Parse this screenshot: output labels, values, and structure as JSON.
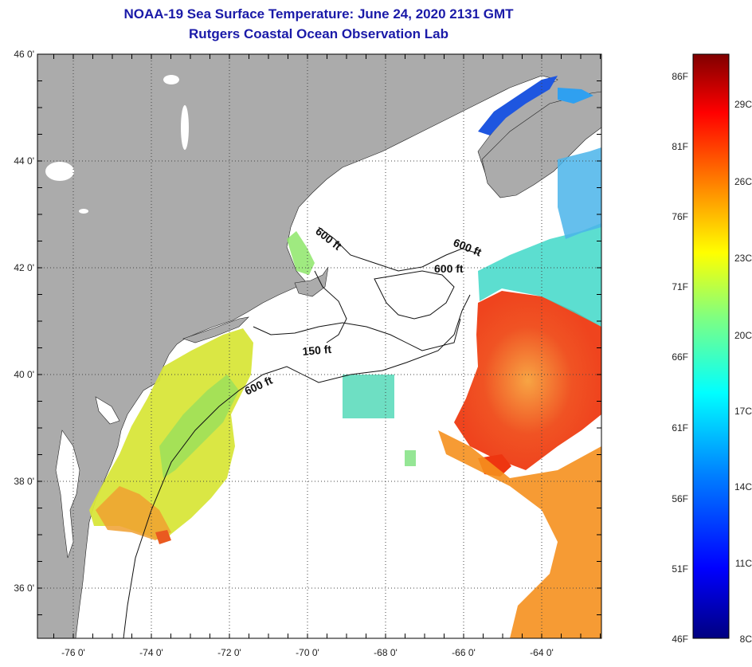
{
  "title": "NOAA-19 Sea Surface Temperature:  June 24, 2020 2131 GMT",
  "subtitle": "Rutgers Coastal Ocean Observation Lab",
  "lat_labels": [
    "46 0'",
    "44 0'",
    "42 0'",
    "40 0'",
    "38 0'",
    "36 0'"
  ],
  "lon_labels": [
    "-76 0'",
    "-74 0'",
    "-72 0'",
    "-70 0'",
    "-68 0'",
    "-66 0'",
    "-64 0'"
  ],
  "contour_labels": [
    {
      "text": "600 ft",
      "key": "gulf_of_maine_west"
    },
    {
      "text": "600 ft",
      "key": "northeast_channel_a"
    },
    {
      "text": "600 ft",
      "key": "northeast_channel_b"
    },
    {
      "text": "150 ft",
      "key": "nantucket_shoals"
    },
    {
      "text": "600 ft",
      "key": "shelf_break"
    }
  ],
  "colorbar": {
    "fahrenheit_labels": [
      "86F",
      "81F",
      "76F",
      "71F",
      "66F",
      "61F",
      "56F",
      "51F",
      "46F"
    ],
    "celsius_labels": [
      "29C",
      "26C",
      "23C",
      "20C",
      "17C",
      "14C",
      "11C",
      "8C"
    ],
    "colors": [
      "#000080",
      "#0000ff",
      "#0080ff",
      "#00ffff",
      "#80ff80",
      "#ffff00",
      "#ff8000",
      "#ff0000",
      "#800000"
    ]
  },
  "colors": {
    "land": "#ababab",
    "ocean": "#ffffff",
    "title": "#1a1aa8"
  }
}
